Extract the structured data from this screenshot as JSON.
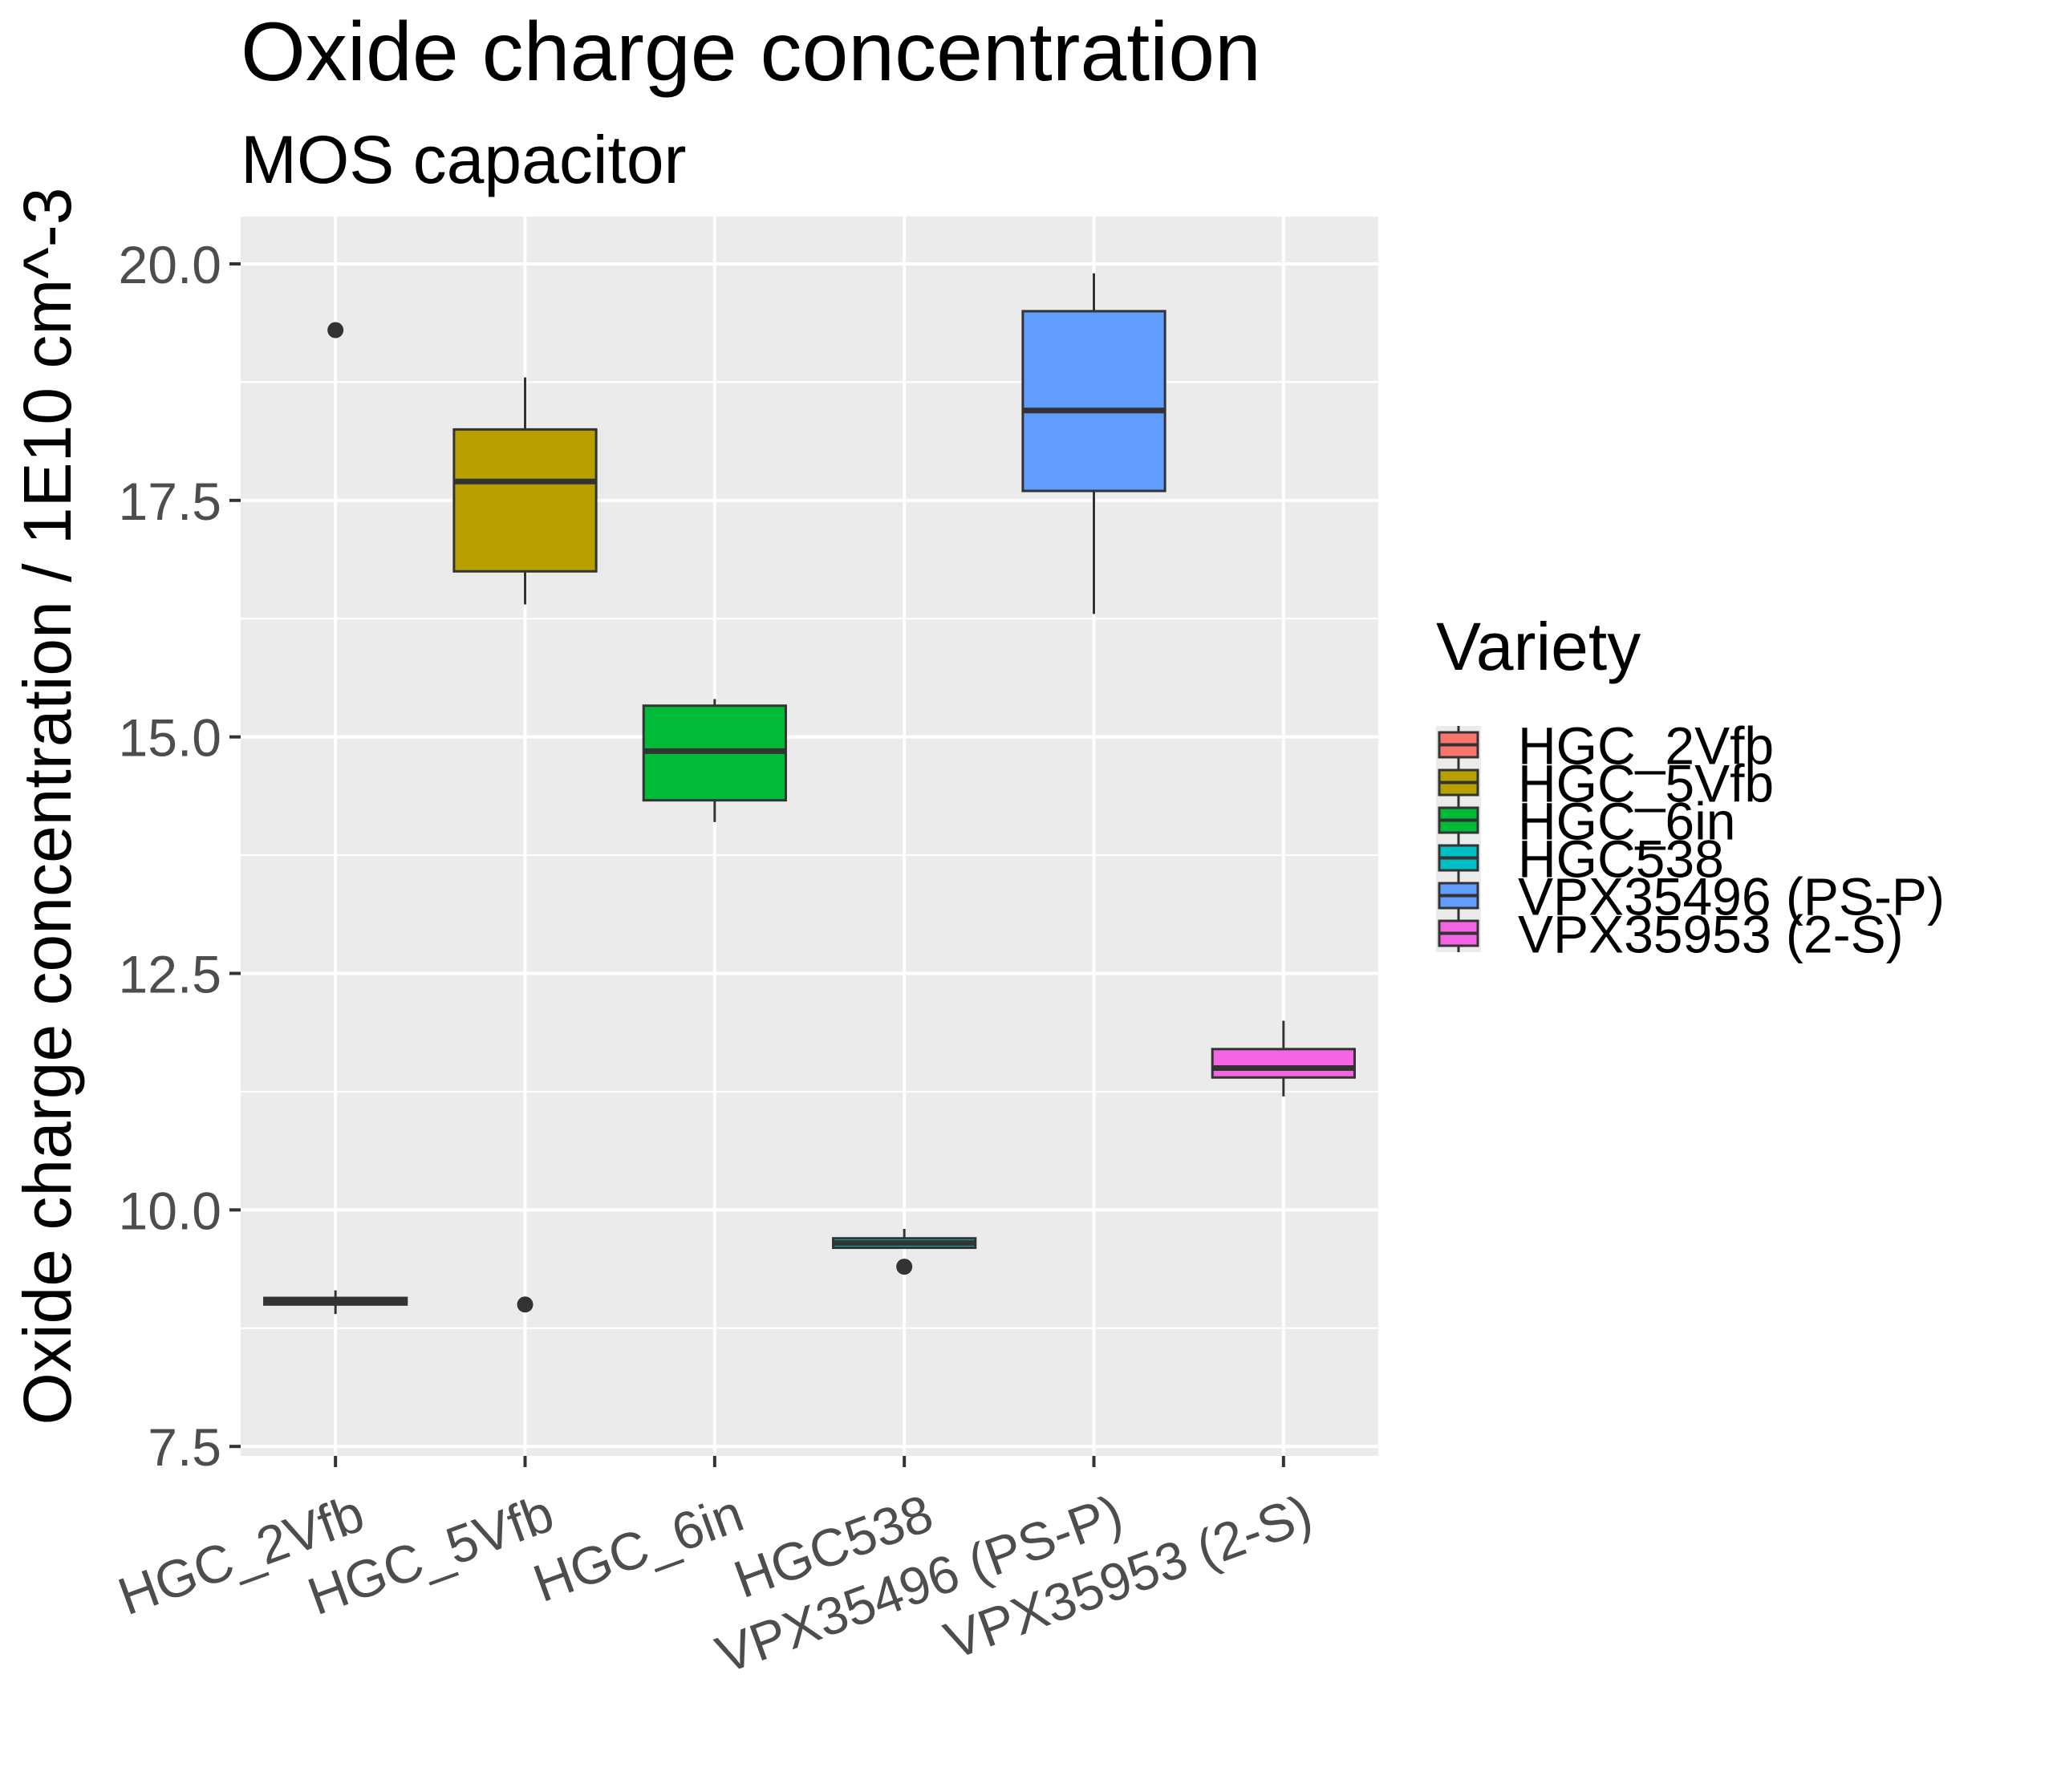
{
  "chart_data": {
    "type": "boxplot",
    "title": "Oxide charge concentration",
    "subtitle": "MOS capacitor",
    "xlabel": "",
    "ylabel": "Oxide charge concentration / 1E10 cm^-3",
    "ylim": [
      7.4,
      20.5
    ],
    "yticks": [
      7.5,
      10.0,
      12.5,
      15.0,
      17.5,
      20.0
    ],
    "ytick_labels": [
      "7.5",
      "10.0",
      "12.5",
      "15.0",
      "17.5",
      "20.0"
    ],
    "grid": true,
    "categories": [
      "HGC_2Vfb",
      "HGC_5Vfb",
      "HGC_6in",
      "HGC538",
      "VPX35496 (PS-P)",
      "VPX35953 (2-S)"
    ],
    "boxes": [
      {
        "name": "HGC_2Vfb",
        "color": "#F8766D",
        "whisker_low": 8.9,
        "q1": 9.0,
        "median": 9.03,
        "q3": 9.07,
        "whisker_high": 9.15,
        "outliers": [
          19.3
        ]
      },
      {
        "name": "HGC_5Vfb",
        "color": "#B79F00",
        "whisker_low": 16.4,
        "q1": 16.75,
        "median": 17.7,
        "q3": 18.25,
        "whisker_high": 18.8,
        "outliers": [
          9.0
        ]
      },
      {
        "name": "HGC_6in",
        "color": "#00BA38",
        "whisker_low": 14.1,
        "q1": 14.33,
        "median": 14.85,
        "q3": 15.33,
        "whisker_high": 15.4,
        "outliers": []
      },
      {
        "name": "HGC538",
        "color": "#00BFC4",
        "whisker_low": 9.6,
        "q1": 9.6,
        "median": 9.65,
        "q3": 9.7,
        "whisker_high": 9.8,
        "outliers": [
          9.4
        ]
      },
      {
        "name": "VPX35496 (PS-P)",
        "color": "#619CFF",
        "whisker_low": 16.3,
        "q1": 17.6,
        "median": 18.45,
        "q3": 19.5,
        "whisker_high": 19.9,
        "outliers": []
      },
      {
        "name": "VPX35953 (2-S)",
        "color": "#F564E3",
        "whisker_low": 11.2,
        "q1": 11.4,
        "median": 11.5,
        "q3": 11.7,
        "whisker_high": 12.0,
        "outliers": []
      }
    ],
    "legend": {
      "title": "Variety",
      "position": "right",
      "items": [
        "HGC_2Vfb",
        "HGC_5Vfb",
        "HGC_6in",
        "HGC538",
        "VPX35496 (PS-P)",
        "VPX35953 (2-S)"
      ]
    },
    "colors": {
      "panel_background": "#EBEBEB",
      "grid": "#FFFFFF",
      "box_outline": "#333333"
    }
  }
}
